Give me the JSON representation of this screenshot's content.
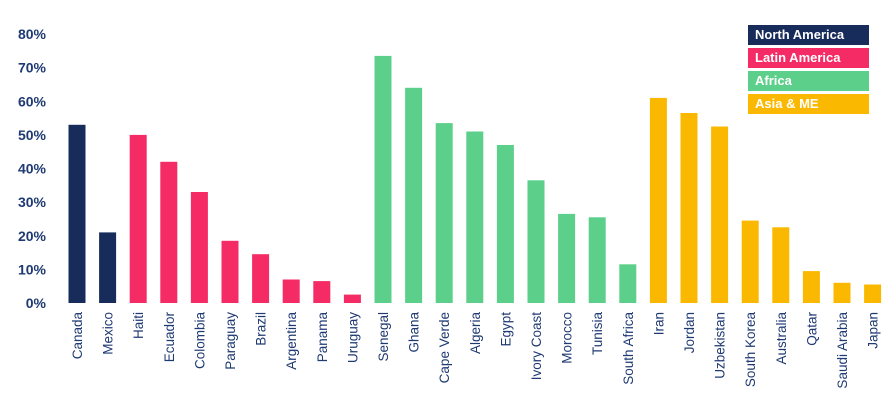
{
  "chart_data": {
    "type": "bar",
    "title": "",
    "xlabel": "",
    "ylabel": "",
    "ylim": [
      0,
      80
    ],
    "yticks": [
      0,
      10,
      20,
      30,
      40,
      50,
      60,
      70,
      80
    ],
    "ytick_format": "percent",
    "grid": false,
    "legend_position": "top-right",
    "groups": [
      {
        "name": "North America",
        "color": "#172c5a"
      },
      {
        "name": "Latin America",
        "color": "#f42b64"
      },
      {
        "name": "Africa",
        "color": "#5ccf8a"
      },
      {
        "name": "Asia & ME",
        "color": "#fbb800"
      }
    ],
    "bars": [
      {
        "category": "Canada",
        "value": 53,
        "group": 0
      },
      {
        "category": "Mexico",
        "value": 21,
        "group": 0
      },
      {
        "category": "Haiti",
        "value": 50,
        "group": 1
      },
      {
        "category": "Ecuador",
        "value": 42,
        "group": 1
      },
      {
        "category": "Colombia",
        "value": 33,
        "group": 1
      },
      {
        "category": "Paraguay",
        "value": 18.5,
        "group": 1
      },
      {
        "category": "Brazil",
        "value": 14.5,
        "group": 1
      },
      {
        "category": "Argentina",
        "value": 7,
        "group": 1
      },
      {
        "category": "Panama",
        "value": 6.5,
        "group": 1
      },
      {
        "category": "Uruguay",
        "value": 2.5,
        "group": 1
      },
      {
        "category": "Senegal",
        "value": 73.5,
        "group": 2
      },
      {
        "category": "Ghana",
        "value": 64,
        "group": 2
      },
      {
        "category": "Cape Verde",
        "value": 53.5,
        "group": 2
      },
      {
        "category": "Algeria",
        "value": 51,
        "group": 2
      },
      {
        "category": "Egypt",
        "value": 47,
        "group": 2
      },
      {
        "category": "Ivory Coast",
        "value": 36.5,
        "group": 2
      },
      {
        "category": "Morocco",
        "value": 26.5,
        "group": 2
      },
      {
        "category": "Tunisia",
        "value": 25.5,
        "group": 2
      },
      {
        "category": "South Africa",
        "value": 11.5,
        "group": 2
      },
      {
        "category": "Iran",
        "value": 61,
        "group": 3
      },
      {
        "category": "Jordan",
        "value": 56.5,
        "group": 3
      },
      {
        "category": "Uzbekistan",
        "value": 52.5,
        "group": 3
      },
      {
        "category": "South Korea",
        "value": 24.5,
        "group": 3
      },
      {
        "category": "Australia",
        "value": 22.5,
        "group": 3
      },
      {
        "category": "Qatar",
        "value": 9.5,
        "group": 3
      },
      {
        "category": "Saudi Arabia",
        "value": 6,
        "group": 3
      },
      {
        "category": "Japan",
        "value": 5.5,
        "group": 3
      }
    ]
  }
}
